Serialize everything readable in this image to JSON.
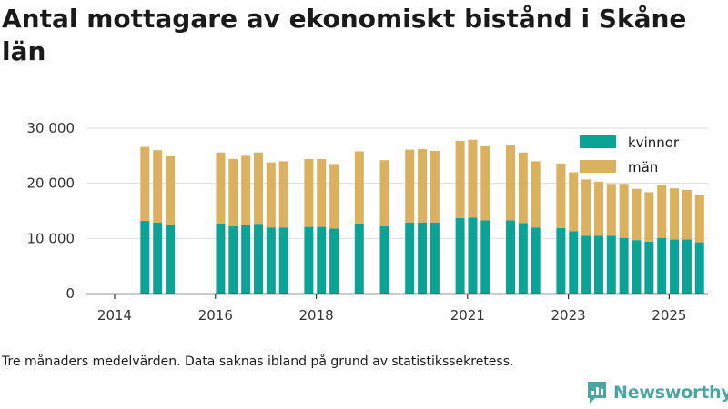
{
  "title": "Antal mottagare av ekonomiskt bistånd i Skåne län",
  "note": "Tre månaders medelvärden. Data saknas ibland på grund av statistikssekretess.",
  "brand": "Newsworthy",
  "colors": {
    "kvinnor": "#0aa396",
    "man": "#dbb05e",
    "grid": "#dddddd",
    "axis": "#333333",
    "brand": "#4aa6a4"
  },
  "chart_data": {
    "type": "bar",
    "stacked": true,
    "x_tick_labels": [
      "2014",
      "2016",
      "2018",
      "2021",
      "2023",
      "2025"
    ],
    "y_tick_labels": [
      "0",
      "10 000",
      "20 000",
      "30 000"
    ],
    "ylim": [
      0,
      30000
    ],
    "grid": true,
    "legend_position": "top-right",
    "legend": [
      "kvinnor",
      "män"
    ],
    "categories": [
      "2014 Q2",
      "2014 Q3",
      "2014 Q4",
      "2015 Q4",
      "2016 Q1",
      "2016 Q2",
      "2016 Q3",
      "2016 Q4",
      "2017 Q1",
      "2017 Q3",
      "2017 Q4",
      "2018 Q1",
      "2018 Q3",
      "2019 Q1",
      "2019 Q3",
      "2019 Q4",
      "2020 Q1",
      "2020 Q3",
      "2020 Q4",
      "2021 Q1",
      "2021 Q3",
      "2021 Q4",
      "2022 Q1",
      "2022 Q3",
      "2022 Q4",
      "2023 Q1",
      "2023 Q2",
      "2023 Q3",
      "2023 Q4",
      "2024 Q1",
      "2024 Q2",
      "2024 Q3",
      "2024 Q4",
      "2025 Q1",
      "2025 Q2"
    ],
    "series": [
      {
        "name": "kvinnor",
        "values": [
          13200,
          12900,
          12400,
          12700,
          12200,
          12400,
          12500,
          12000,
          12000,
          12100,
          12100,
          11800,
          12700,
          12200,
          12900,
          12900,
          12900,
          13700,
          13800,
          13300,
          13300,
          12800,
          12000,
          11900,
          11300,
          10500,
          10500,
          10500,
          10100,
          9700,
          9400,
          10100,
          9800,
          9800,
          9300
        ]
      },
      {
        "name": "män",
        "values": [
          13400,
          13100,
          12500,
          12900,
          12200,
          12600,
          13100,
          11800,
          12000,
          12300,
          12300,
          11700,
          13100,
          12000,
          13200,
          13300,
          13000,
          14000,
          14100,
          13400,
          13600,
          12800,
          12000,
          11700,
          10700,
          10200,
          9800,
          9400,
          9800,
          9300,
          9000,
          9600,
          9300,
          9000,
          8600
        ]
      }
    ]
  }
}
